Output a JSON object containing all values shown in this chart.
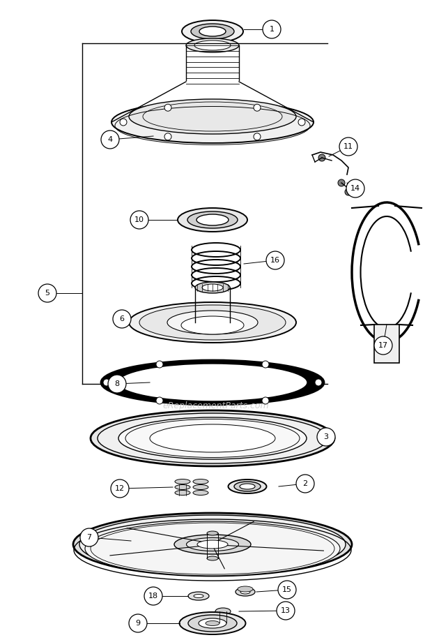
{
  "background_color": "#ffffff",
  "watermark": "eReplacementParts.com",
  "fig_w": 6.2,
  "fig_h": 9.17,
  "dpi": 100
}
